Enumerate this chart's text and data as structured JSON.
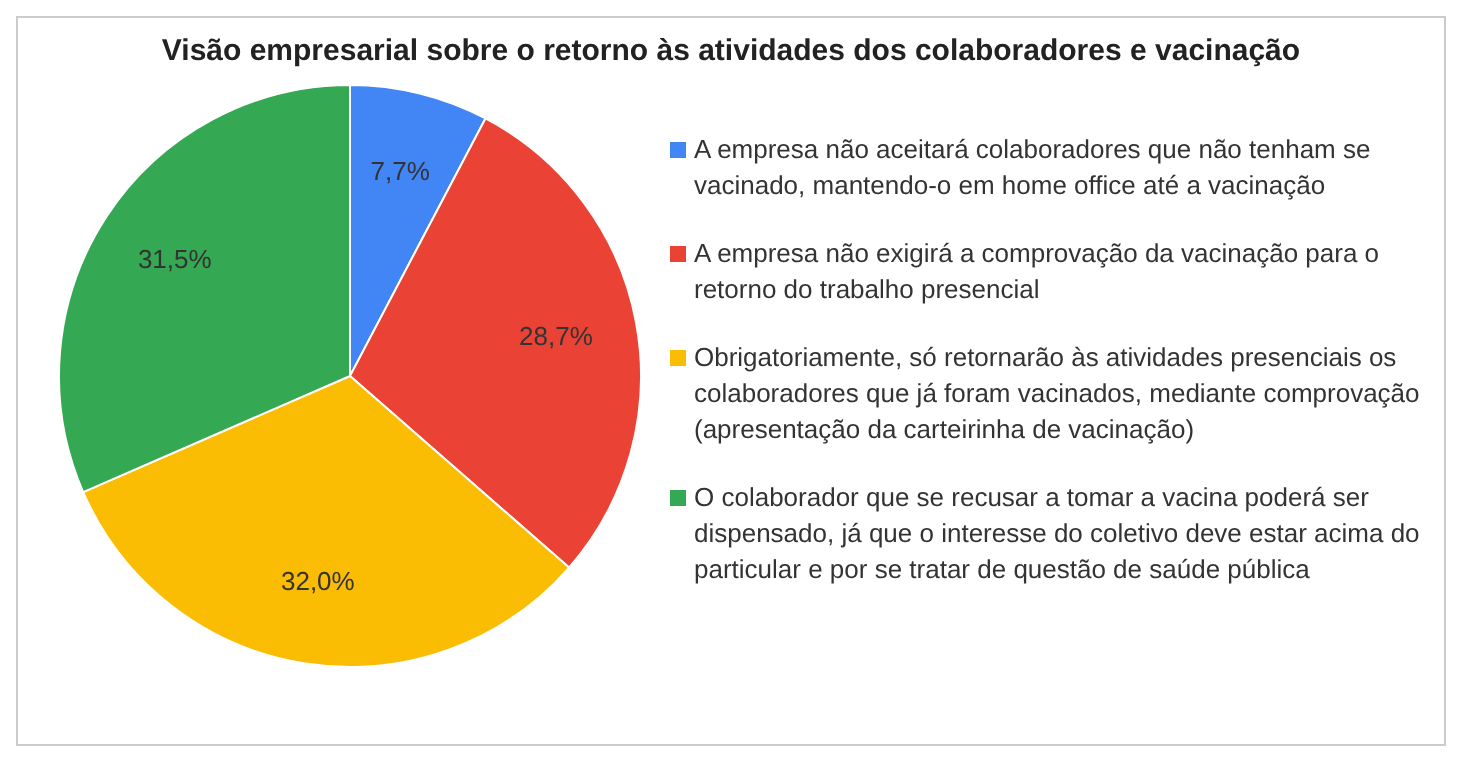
{
  "chart_data": {
    "type": "pie",
    "title": "Visão empresarial sobre o retorno às atividades dos colaboradores e vacinação",
    "categories": [
      "A empresa não aceitará colaboradores que não tenham se vacinado, mantendo-o em home office até a vacinação",
      "A empresa não exigirá a comprovação da vacinação para o retorno do trabalho presencial",
      "Obrigatoriamente, só retornarão às atividades presenciais os colaboradores que já foram vacinados, mediante comprovação (apresentação da carteirinha de vacinação)",
      "O colaborador que se recusar a tomar a vacina poderá ser dispensado, já que o interesse do coletivo deve estar acima do particular e por se tratar de questão de saúde pública"
    ],
    "values": [
      7.7,
      28.7,
      32.0,
      31.5
    ],
    "value_labels": [
      "7,7%",
      "28,7%",
      "32,0%",
      "31,5%"
    ],
    "colors": [
      "#4285f4",
      "#ea4335",
      "#fbbc04",
      "#34a853"
    ],
    "legend": "right"
  }
}
